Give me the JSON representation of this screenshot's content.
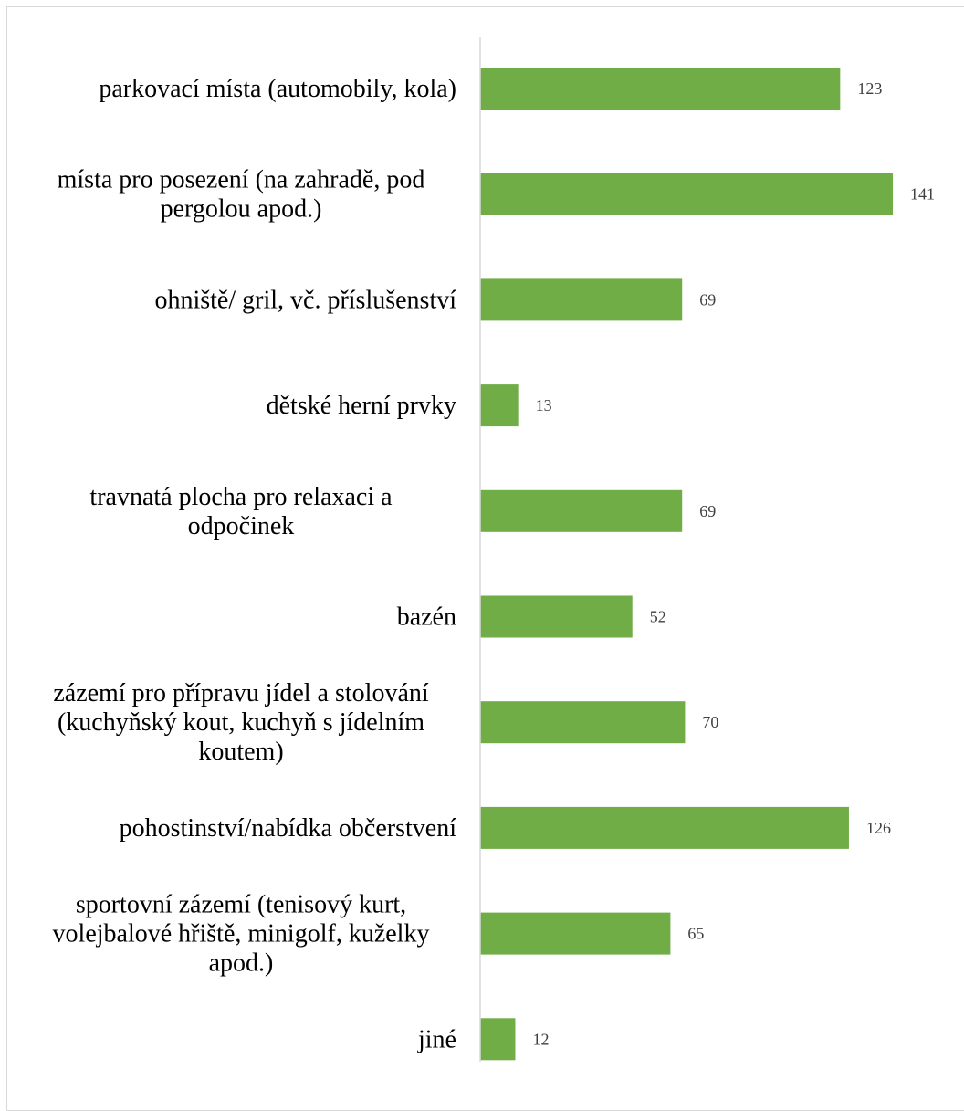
{
  "chart_data": {
    "type": "bar",
    "orientation": "horizontal",
    "title": "",
    "xlabel": "",
    "ylabel": "",
    "bar_color": "#70AD47",
    "axis_color": "#D9D9D9",
    "xlim": [
      0,
      141
    ],
    "grid": false,
    "legend": "none",
    "categories": [
      [
        "parkovací místa (automobily, kola)"
      ],
      [
        "místa pro posezení (na zahradě, pod",
        "pergolou apod.)"
      ],
      [
        "ohniště/ gril, vč. příslušenství"
      ],
      [
        "dětské herní prvky"
      ],
      [
        "travnatá plocha pro relaxaci a",
        "odpočinek"
      ],
      [
        "bazén"
      ],
      [
        "zázemí pro přípravu jídel a stolování",
        "(kuchyňský kout, kuchyň s jídelním",
        "koutem)"
      ],
      [
        "pohostinství/nabídka občerstvení"
      ],
      [
        "sportovní zázemí (tenisový kurt,",
        "volejbalové hřiště, minigolf, kuželky",
        "apod.)"
      ],
      [
        "jiné"
      ]
    ],
    "values": [
      123,
      141,
      69,
      13,
      69,
      52,
      70,
      126,
      65,
      12
    ],
    "data_labels": [
      "123",
      "141",
      "69",
      "13",
      "69",
      "52",
      "70",
      "126",
      "65",
      "12"
    ]
  }
}
